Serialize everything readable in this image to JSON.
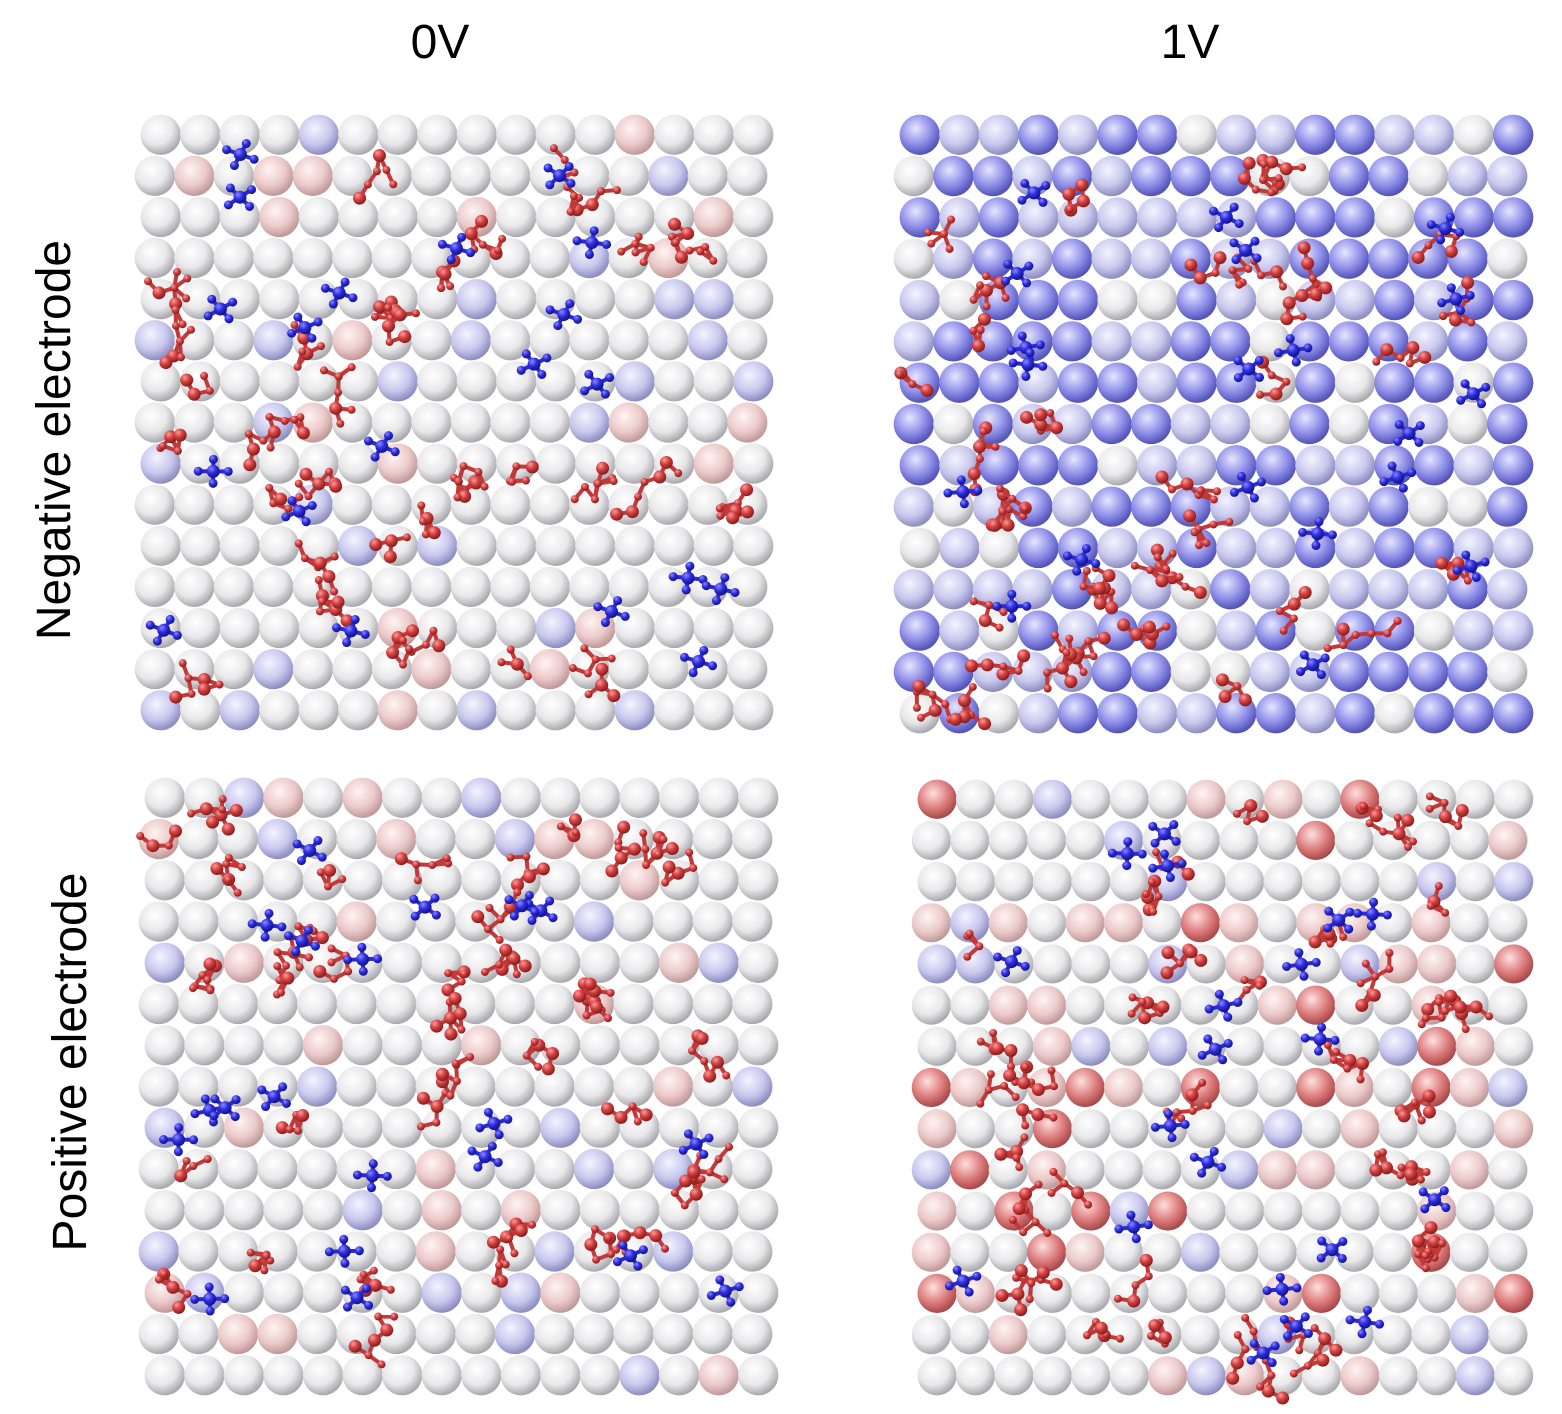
{
  "columns": [
    "0V",
    "1V"
  ],
  "rows": [
    "Negative electrode",
    "Positive electrode"
  ]
}
